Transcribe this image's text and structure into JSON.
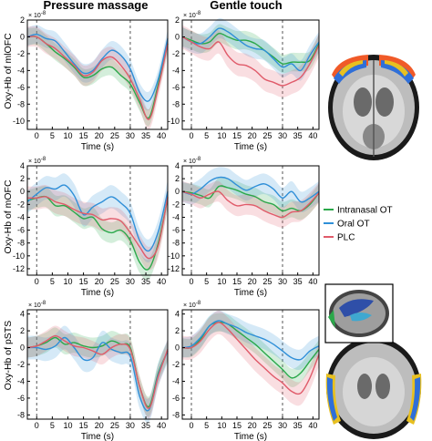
{
  "figure": {
    "column_titles": [
      "Pressure massage",
      "Gentle touch"
    ],
    "row_ylabels": [
      "Oxy-Hb of mlOFC",
      "Oxy-Hb of mOFC",
      "Oxy-Hb of pSTS"
    ],
    "xlabel": "Time (s)",
    "exponent_label": "× 10",
    "exponent_power": "-8"
  },
  "legend": [
    {
      "label": "Intranasal OT",
      "color": "#2aa84a"
    },
    {
      "label": "Oral OT",
      "color": "#2f8fd8"
    },
    {
      "label": "PLC",
      "color": "#e05b6a"
    }
  ],
  "colors": {
    "Intranasal OT": "#2aa84a",
    "Oral OT": "#2f8fd8",
    "PLC": "#e05b6a"
  },
  "chart_data": [
    {
      "type": "line",
      "title": "Pressure massage",
      "ylabel": "Oxy-Hb of mlOFC",
      "xlabel": "Time (s)",
      "xlim": [
        -3,
        42
      ],
      "xticks": [
        0,
        5,
        10,
        15,
        20,
        25,
        30,
        35,
        40
      ],
      "ylim": [
        -11,
        2
      ],
      "yticks": [
        -10,
        -8,
        -6,
        -4,
        -2,
        0,
        2
      ],
      "y_scale_exponent": -8,
      "vlines": [
        0,
        30
      ],
      "x": [
        -3,
        0,
        3,
        6,
        9,
        12,
        15,
        18,
        21,
        24,
        27,
        30,
        33,
        36,
        39,
        42
      ],
      "series": [
        {
          "name": "Intranasal OT",
          "values": [
            0,
            0,
            -0.8,
            -1.8,
            -2.6,
            -3.6,
            -4.8,
            -4.6,
            -3.8,
            -3.6,
            -4.6,
            -5.6,
            -7.8,
            -9.6,
            -5.6,
            -0.8
          ],
          "band": 1.0
        },
        {
          "name": "Oral OT",
          "values": [
            0,
            0.3,
            -0.2,
            -0.5,
            -1.8,
            -3.2,
            -4.3,
            -4.0,
            -2.6,
            -1.6,
            -2.2,
            -3.8,
            -6.6,
            -7.6,
            -5.0,
            -0.2
          ],
          "band": 1.1
        },
        {
          "name": "PLC",
          "values": [
            0,
            0,
            -0.8,
            -1.4,
            -2.4,
            -3.4,
            -4.6,
            -4.2,
            -2.8,
            -2.4,
            -3.4,
            -5.0,
            -7.4,
            -9.8,
            -6.0,
            -0.8
          ],
          "band": 1.2
        }
      ]
    },
    {
      "type": "line",
      "title": "Gentle touch",
      "ylabel": "Oxy-Hb of mlOFC",
      "xlabel": "Time (s)",
      "xlim": [
        -3,
        42
      ],
      "xticks": [
        0,
        5,
        10,
        15,
        20,
        25,
        30,
        35,
        40
      ],
      "ylim": [
        -11,
        2
      ],
      "yticks": [
        -10,
        -8,
        -6,
        -4,
        -2,
        0,
        2
      ],
      "y_scale_exponent": -8,
      "vlines": [
        0,
        30
      ],
      "x": [
        -3,
        0,
        3,
        6,
        9,
        12,
        15,
        18,
        21,
        24,
        27,
        30,
        33,
        36,
        39,
        42
      ],
      "series": [
        {
          "name": "Intranasal OT",
          "values": [
            0,
            -0.4,
            -0.8,
            -0.6,
            0.4,
            0.0,
            -0.4,
            -0.4,
            -0.8,
            -1.6,
            -2.4,
            -3.2,
            -3.0,
            -3.0,
            -2.8,
            -0.8
          ],
          "band": 1.1
        },
        {
          "name": "Oral OT",
          "values": [
            0,
            -0.6,
            -0.8,
            0.0,
            1.0,
            0.6,
            -0.2,
            -1.0,
            -1.4,
            -1.6,
            -2.6,
            -3.6,
            -3.2,
            -4.0,
            -2.2,
            -0.6
          ],
          "band": 1.2
        },
        {
          "name": "PLC",
          "values": [
            0,
            -0.6,
            -1.2,
            -1.4,
            -0.6,
            -2.2,
            -3.2,
            -3.4,
            -4.0,
            -5.0,
            -5.4,
            -5.8,
            -5.4,
            -4.8,
            -3.2,
            -1.0
          ],
          "band": 1.4
        }
      ]
    },
    {
      "type": "line",
      "title": "Pressure massage",
      "ylabel": "Oxy-Hb of mOFC",
      "xlabel": "Time (s)",
      "xlim": [
        -3,
        42
      ],
      "xticks": [
        0,
        5,
        10,
        15,
        20,
        25,
        30,
        35,
        40
      ],
      "ylim": [
        -13,
        4
      ],
      "yticks": [
        -12,
        -10,
        -8,
        -6,
        -4,
        -2,
        0,
        2,
        4
      ],
      "y_scale_exponent": -8,
      "vlines": [
        0,
        30
      ],
      "x": [
        -3,
        0,
        3,
        6,
        9,
        12,
        15,
        18,
        21,
        24,
        27,
        30,
        33,
        36,
        39,
        42
      ],
      "series": [
        {
          "name": "Intranasal OT",
          "values": [
            -1.4,
            -1.0,
            -0.8,
            -2.2,
            -2.2,
            -3.2,
            -4.2,
            -4.0,
            -5.8,
            -6.4,
            -6.0,
            -7.6,
            -11.0,
            -12.0,
            -8.0,
            -1.0
          ],
          "band": 1.6
        },
        {
          "name": "Oral OT",
          "values": [
            -1.6,
            -0.4,
            0.6,
            0.4,
            1.0,
            -0.6,
            -3.6,
            -2.4,
            -1.6,
            -0.8,
            -1.8,
            -3.4,
            -7.6,
            -9.2,
            -6.2,
            0.0
          ],
          "band": 1.8
        },
        {
          "name": "PLC",
          "values": [
            -1.0,
            -1.0,
            -0.8,
            -1.6,
            -2.0,
            -2.8,
            -3.4,
            -3.6,
            -4.4,
            -4.2,
            -4.6,
            -6.4,
            -8.6,
            -10.4,
            -8.4,
            -0.8
          ],
          "band": 1.8
        }
      ]
    },
    {
      "type": "line",
      "title": "Gentle touch",
      "ylabel": "Oxy-Hb of mOFC",
      "xlabel": "Time (s)",
      "xlim": [
        -3,
        42
      ],
      "xticks": [
        0,
        5,
        10,
        15,
        20,
        25,
        30,
        35,
        40
      ],
      "ylim": [
        -13,
        4
      ],
      "yticks": [
        -12,
        -10,
        -8,
        -6,
        -4,
        -2,
        0,
        2,
        4
      ],
      "y_scale_exponent": -8,
      "vlines": [
        0,
        30
      ],
      "x": [
        -3,
        0,
        3,
        6,
        9,
        12,
        15,
        18,
        21,
        24,
        27,
        30,
        33,
        36,
        39,
        42
      ],
      "series": [
        {
          "name": "Intranasal OT",
          "values": [
            0,
            -0.2,
            -0.6,
            -1.0,
            0.8,
            0.6,
            0.2,
            -0.4,
            -0.8,
            -1.6,
            -2.0,
            -3.0,
            -2.6,
            -3.0,
            -2.0,
            -0.2
          ],
          "band": 1.4
        },
        {
          "name": "Oral OT",
          "values": [
            0,
            -0.4,
            0.4,
            1.6,
            2.2,
            2.0,
            1.0,
            0.2,
            0.8,
            1.2,
            0.4,
            -1.0,
            0.0,
            -1.6,
            -1.0,
            0.0
          ],
          "band": 1.6
        },
        {
          "name": "PLC",
          "values": [
            0,
            -0.4,
            -1.0,
            -0.4,
            0.0,
            -1.4,
            -2.2,
            -2.0,
            -2.2,
            -3.0,
            -3.6,
            -4.0,
            -3.2,
            -3.0,
            -1.8,
            -0.2
          ],
          "band": 1.6
        }
      ]
    },
    {
      "type": "line",
      "title": "Pressure massage",
      "ylabel": "Oxy-Hb of pSTS",
      "xlabel": "Time (s)",
      "xlim": [
        -3,
        42
      ],
      "xticks": [
        0,
        5,
        10,
        15,
        20,
        25,
        30,
        35,
        40
      ],
      "ylim": [
        -8.5,
        4.5
      ],
      "yticks": [
        -8,
        -6,
        -4,
        -2,
        0,
        2,
        4
      ],
      "y_scale_exponent": -8,
      "vlines": [
        0,
        30
      ],
      "x": [
        -3,
        0,
        3,
        6,
        9,
        12,
        15,
        18,
        21,
        24,
        27,
        30,
        33,
        36,
        39,
        42
      ],
      "series": [
        {
          "name": "Intranasal OT",
          "values": [
            0,
            0.2,
            0.6,
            1.2,
            0.4,
            0.6,
            0.2,
            0.0,
            0.2,
            0.8,
            0.4,
            0.0,
            -4.6,
            -7.0,
            -3.0,
            -0.4
          ],
          "band": 1.2
        },
        {
          "name": "Oral OT",
          "values": [
            0,
            0.0,
            -0.2,
            0.2,
            1.2,
            0.0,
            -1.4,
            -1.2,
            0.6,
            -0.2,
            -0.6,
            -1.0,
            -5.8,
            -7.4,
            -3.2,
            -0.4
          ],
          "band": 1.4
        },
        {
          "name": "PLC",
          "values": [
            0,
            0.2,
            0.8,
            1.4,
            0.8,
            0.2,
            0.0,
            -0.4,
            -0.8,
            0.0,
            0.4,
            -0.2,
            -4.6,
            -7.2,
            -3.4,
            -0.2
          ],
          "band": 1.2
        }
      ]
    },
    {
      "type": "line",
      "title": "Gentle touch",
      "ylabel": "Oxy-Hb of pSTS",
      "xlabel": "Time (s)",
      "xlim": [
        -3,
        42
      ],
      "xticks": [
        0,
        5,
        10,
        15,
        20,
        25,
        30,
        35,
        40
      ],
      "ylim": [
        -8.5,
        4.5
      ],
      "yticks": [
        -8,
        -6,
        -4,
        -2,
        0,
        2,
        4
      ],
      "y_scale_exponent": -8,
      "vlines": [
        0,
        30
      ],
      "x": [
        -3,
        0,
        3,
        6,
        9,
        12,
        15,
        18,
        21,
        24,
        27,
        30,
        33,
        36,
        39,
        42
      ],
      "series": [
        {
          "name": "Intranasal OT",
          "values": [
            0,
            0.0,
            1.0,
            2.6,
            3.0,
            2.8,
            2.0,
            1.2,
            0.4,
            -0.6,
            -1.6,
            -2.6,
            -3.6,
            -3.0,
            -1.6,
            -0.2
          ],
          "band": 1.1
        },
        {
          "name": "Oral OT",
          "values": [
            0,
            0.2,
            1.2,
            2.6,
            3.2,
            2.8,
            2.4,
            1.8,
            1.4,
            1.0,
            0.4,
            -0.4,
            -1.2,
            -1.4,
            -0.4,
            0.2
          ],
          "band": 1.2
        },
        {
          "name": "PLC",
          "values": [
            0,
            0.0,
            0.8,
            2.2,
            3.0,
            2.2,
            1.0,
            -0.2,
            -1.4,
            -2.4,
            -3.4,
            -4.2,
            -5.2,
            -5.4,
            -3.6,
            -0.8
          ],
          "band": 1.4
        }
      ]
    }
  ]
}
